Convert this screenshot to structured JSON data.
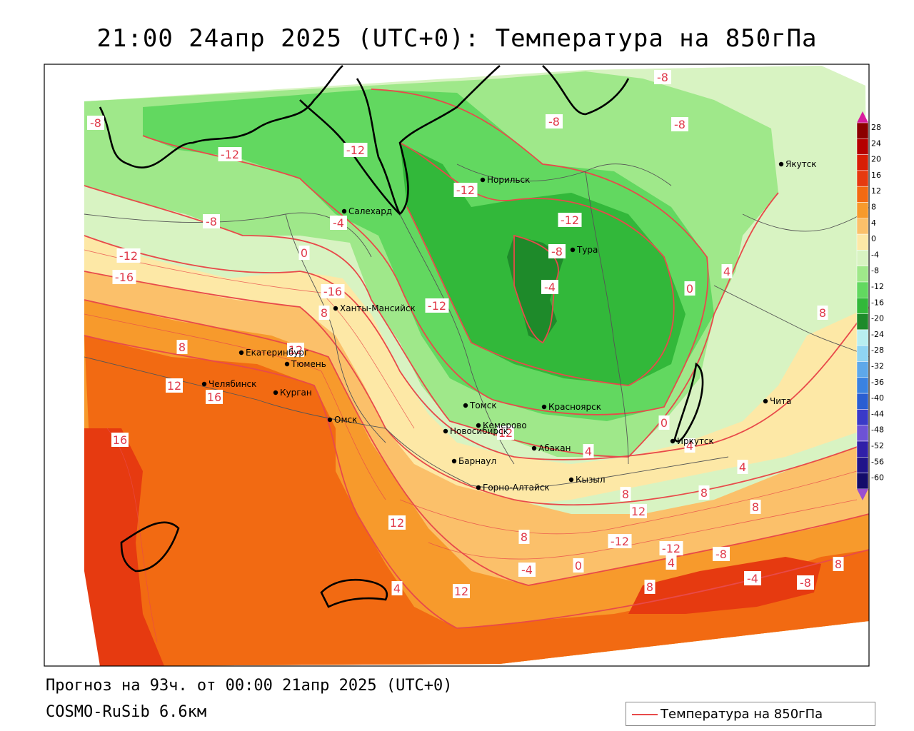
{
  "title": "21:00 24апр 2025 (UTC+0): Температура на 850гПа",
  "forecast_line": "Прогноз на 93ч. от 00:00 21апр 2025 (UTC+0)",
  "model_line": "COSMO-RuSib 6.6км",
  "legend_label": "Температура на 850гПа",
  "colors": {
    "isotherm": "#e84a4a",
    "coast": "#000000",
    "border": "#555555"
  },
  "color_scale": [
    {
      "value": "28",
      "color": "#8b0000"
    },
    {
      "value": "24",
      "color": "#b50000"
    },
    {
      "value": "20",
      "color": "#d81e05"
    },
    {
      "value": "16",
      "color": "#e63a10"
    },
    {
      "value": "12",
      "color": "#f26a12"
    },
    {
      "value": "8",
      "color": "#f79a2c"
    },
    {
      "value": "4",
      "color": "#fbc06a"
    },
    {
      "value": "0",
      "color": "#fde8a6"
    },
    {
      "value": "-4",
      "color": "#d8f3c2"
    },
    {
      "value": "-8",
      "color": "#9fe88a"
    },
    {
      "value": "-12",
      "color": "#62d860"
    },
    {
      "value": "-16",
      "color": "#32b83a"
    },
    {
      "value": "-20",
      "color": "#1e8a2a"
    },
    {
      "value": "-24",
      "color": "#b8eef0"
    },
    {
      "value": "-28",
      "color": "#8fd4f2"
    },
    {
      "value": "-32",
      "color": "#5ea8ea"
    },
    {
      "value": "-36",
      "color": "#3a82e0"
    },
    {
      "value": "-40",
      "color": "#2a5ed2"
    },
    {
      "value": "-44",
      "color": "#3a3ac8"
    },
    {
      "value": "-48",
      "color": "#6d52d6"
    },
    {
      "value": "-52",
      "color": "#3020a8"
    },
    {
      "value": "-56",
      "color": "#20148a"
    },
    {
      "value": "-60",
      "color": "#140c6a"
    }
  ],
  "scale_top_arrow_color": "#d81e9e",
  "scale_bottom_arrow_color": "#9a4ed0",
  "cities": [
    {
      "name": "Якутск"
    },
    {
      "name": "Норильск"
    },
    {
      "name": "Салехард"
    },
    {
      "name": "Тура"
    },
    {
      "name": "Ханты-Мансийск"
    },
    {
      "name": "Екатеринбург"
    },
    {
      "name": "Тюмень"
    },
    {
      "name": "Челябинск"
    },
    {
      "name": "Курган"
    },
    {
      "name": "Омск"
    },
    {
      "name": "Новосибирск"
    },
    {
      "name": "Томск"
    },
    {
      "name": "Кемерово"
    },
    {
      "name": "Красноярск"
    },
    {
      "name": "Абакан"
    },
    {
      "name": "Барнаул"
    },
    {
      "name": "Горно-Алтайск"
    },
    {
      "name": "Кызыл"
    },
    {
      "name": "Иркутск"
    },
    {
      "name": "Чита"
    }
  ],
  "isotherm_labels": [
    "-8",
    "-8",
    "-8",
    "-8",
    "-12",
    "-12",
    "-12",
    "-12",
    "-8",
    "-4",
    "0",
    "-12",
    "-16",
    "-16",
    "-12",
    "-8",
    "-4",
    "0",
    "4",
    "8",
    "8",
    "8",
    "12",
    "12",
    "16",
    "16",
    "12",
    "4",
    "0",
    "4",
    "4",
    "8",
    "8",
    "8",
    "12",
    "12",
    "8",
    "-12",
    "-12",
    "-8",
    "-4",
    "0",
    "4",
    "8",
    "4",
    "12",
    "8",
    "-4",
    "-8"
  ]
}
